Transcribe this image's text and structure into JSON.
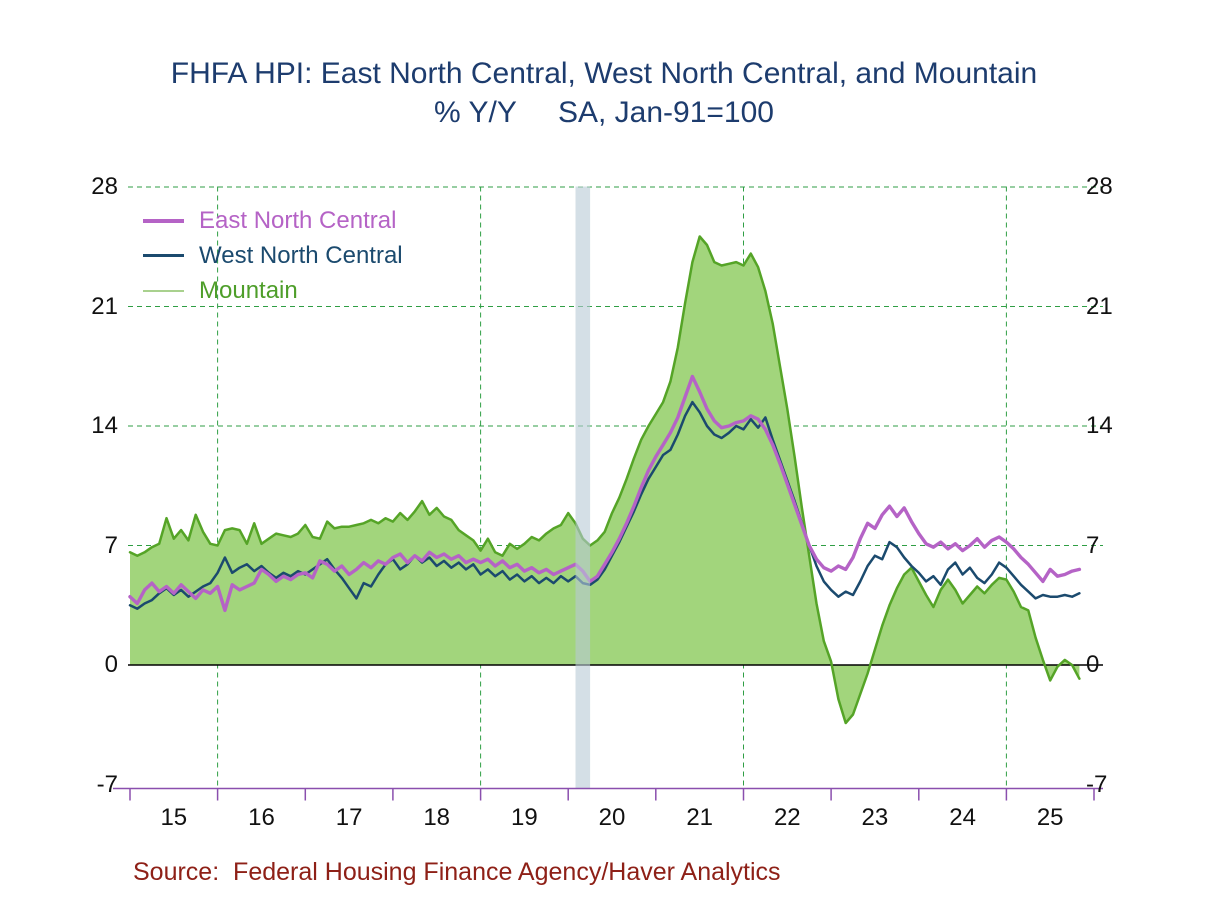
{
  "title": "FHFA HPI: East North Central, West North Central, and Mountain",
  "subtitle": "% Y/Y     SA, Jan-91=100",
  "source": "Source:  Federal Housing Finance Agency/Haver Analytics",
  "colors": {
    "title_text": "#1d3c6e",
    "source_text": "#8e2017",
    "tick_labels": "#111111"
  },
  "chart_data": {
    "type": "line",
    "frequency": "monthly",
    "x_start_month": "2015-01",
    "x_end_month": "2025-11",
    "xlabel": "",
    "ylabel": "",
    "ylim": [
      -7,
      28
    ],
    "legend_position": "top-left-inside",
    "grid": {
      "horizontal_dashed_at": [
        7,
        14,
        21,
        28
      ],
      "vertical_gridline_tick_indices": [
        1,
        4,
        7,
        10
      ],
      "style": "dashed-green"
    },
    "axis": {
      "y_ticks": [
        -7,
        0,
        7,
        14,
        21,
        28
      ],
      "y_ticks_both_sides": true,
      "x_tick_labels": [
        "15",
        "16",
        "17",
        "18",
        "19",
        "20",
        "21",
        "22",
        "23",
        "24",
        "25"
      ],
      "grid_color": "#2f9e44",
      "x_axis_color": "#8a4fae",
      "zero_line_color": "#000000",
      "tick_label_color": "#111111"
    },
    "recession_band": {
      "start_month": "2020-02",
      "end_month": "2020-04",
      "start_month_index": 61,
      "end_month_index": 63,
      "color": "rgba(184,202,214,0.6)"
    },
    "series": [
      {
        "name": "East North Central",
        "color": "#b563c6",
        "label_color": "#b563c6",
        "legend_swatch_color": "#b563c6",
        "legend_swatch_height": 4,
        "line_width": 3.4,
        "fill": false,
        "values": [
          4.0,
          3.6,
          4.4,
          4.8,
          4.3,
          4.6,
          4.2,
          4.7,
          4.3,
          3.9,
          4.4,
          4.2,
          4.6,
          3.2,
          4.7,
          4.4,
          4.6,
          4.8,
          5.6,
          5.3,
          4.9,
          5.2,
          5.0,
          5.3,
          5.4,
          5.1,
          6.1,
          5.9,
          5.5,
          5.8,
          5.3,
          5.6,
          6.0,
          5.7,
          6.1,
          5.9,
          6.3,
          6.5,
          6.0,
          6.4,
          6.1,
          6.6,
          6.3,
          6.5,
          6.2,
          6.4,
          6.0,
          6.2,
          6.0,
          6.2,
          5.8,
          6.1,
          5.7,
          5.9,
          5.5,
          5.7,
          5.4,
          5.6,
          5.3,
          5.5,
          5.7,
          5.9,
          5.5,
          4.9,
          5.2,
          5.9,
          6.6,
          7.4,
          8.3,
          9.3,
          10.4,
          11.4,
          12.2,
          12.9,
          13.6,
          14.5,
          15.7,
          16.9,
          16.0,
          15.0,
          14.3,
          13.9,
          14.0,
          14.2,
          14.3,
          14.6,
          14.4,
          13.8,
          12.9,
          11.8,
          10.6,
          9.4,
          8.2,
          7.0,
          6.2,
          5.7,
          5.5,
          5.8,
          5.6,
          6.3,
          7.4,
          8.3,
          8.0,
          8.8,
          9.3,
          8.7,
          9.2,
          8.4,
          7.7,
          7.1,
          6.9,
          7.2,
          6.8,
          7.1,
          6.7,
          7.0,
          7.4,
          6.9,
          7.3,
          7.5,
          7.2,
          6.8,
          6.3,
          5.9,
          5.4,
          4.9,
          5.6,
          5.2,
          5.3,
          5.5,
          5.6
        ]
      },
      {
        "name": "West North Central",
        "color": "#1b4a6e",
        "label_color": "#1b4a6e",
        "legend_swatch_color": "#1b4a6e",
        "legend_swatch_height": 3,
        "line_width": 2.5,
        "fill": false,
        "values": [
          3.5,
          3.3,
          3.6,
          3.8,
          4.2,
          4.5,
          4.1,
          4.4,
          4.0,
          4.3,
          4.6,
          4.8,
          5.4,
          6.3,
          5.4,
          5.7,
          5.9,
          5.5,
          5.8,
          5.4,
          5.1,
          5.4,
          5.2,
          5.5,
          5.3,
          5.6,
          5.9,
          6.2,
          5.6,
          5.1,
          4.5,
          3.9,
          4.8,
          4.6,
          5.3,
          5.9,
          6.2,
          5.6,
          5.9,
          6.4,
          6.0,
          6.3,
          5.8,
          6.1,
          5.7,
          6.0,
          5.6,
          5.9,
          5.3,
          5.6,
          5.2,
          5.5,
          5.0,
          5.3,
          4.9,
          5.2,
          4.8,
          5.1,
          4.8,
          5.2,
          4.9,
          5.2,
          4.8,
          4.7,
          5.0,
          5.6,
          6.4,
          7.2,
          8.1,
          9.0,
          10.0,
          10.9,
          11.6,
          12.3,
          12.6,
          13.5,
          14.6,
          15.4,
          14.8,
          14.0,
          13.5,
          13.3,
          13.6,
          14.0,
          13.8,
          14.4,
          13.9,
          14.5,
          13.2,
          12.0,
          10.8,
          9.6,
          8.3,
          7.0,
          5.8,
          4.9,
          4.4,
          4.0,
          4.3,
          4.1,
          4.9,
          5.8,
          6.4,
          6.2,
          7.2,
          6.9,
          6.3,
          5.8,
          5.4,
          4.9,
          5.2,
          4.7,
          5.6,
          6.0,
          5.3,
          5.7,
          5.1,
          4.8,
          5.3,
          6.0,
          5.7,
          5.2,
          4.7,
          4.3,
          3.9,
          4.1,
          4.0,
          4.0,
          4.1,
          4.0,
          4.2
        ]
      },
      {
        "name": "Mountain",
        "color": "#55a427",
        "label_color": "#4e9e2a",
        "legend_swatch_color": "#a9d18e",
        "legend_swatch_height": 2,
        "line_width": 2.5,
        "fill": true,
        "fill_color": "#a2d57c",
        "fill_baseline": 0,
        "values": [
          6.6,
          6.4,
          6.6,
          6.9,
          7.1,
          8.6,
          7.4,
          7.9,
          7.3,
          8.8,
          7.8,
          7.1,
          7.0,
          7.9,
          8.0,
          7.9,
          7.1,
          8.3,
          7.1,
          7.4,
          7.7,
          7.6,
          7.5,
          7.7,
          8.2,
          7.5,
          7.4,
          8.4,
          8.0,
          8.1,
          8.1,
          8.2,
          8.3,
          8.5,
          8.3,
          8.6,
          8.4,
          8.9,
          8.5,
          9.0,
          9.6,
          8.8,
          9.2,
          8.7,
          8.5,
          7.9,
          7.6,
          7.3,
          6.7,
          7.4,
          6.6,
          6.4,
          7.1,
          6.8,
          7.1,
          7.5,
          7.3,
          7.7,
          8.0,
          8.2,
          8.9,
          8.3,
          7.4,
          7.0,
          7.3,
          7.8,
          8.9,
          9.8,
          10.9,
          12.1,
          13.2,
          14.0,
          14.7,
          15.4,
          16.6,
          18.6,
          21.2,
          23.6,
          25.1,
          24.6,
          23.6,
          23.4,
          23.5,
          23.6,
          23.4,
          24.1,
          23.3,
          21.9,
          20.0,
          17.5,
          15.0,
          12.2,
          9.2,
          6.4,
          3.6,
          1.4,
          0.2,
          -2.0,
          -3.4,
          -2.9,
          -1.7,
          -0.5,
          0.9,
          2.3,
          3.5,
          4.5,
          5.3,
          5.7,
          4.9,
          4.1,
          3.4,
          4.4,
          5.0,
          4.4,
          3.6,
          4.1,
          4.6,
          4.2,
          4.7,
          5.1,
          5.0,
          4.3,
          3.4,
          3.2,
          1.6,
          0.3,
          -0.9,
          -0.1,
          0.3,
          0.0,
          -0.8
        ]
      }
    ]
  }
}
